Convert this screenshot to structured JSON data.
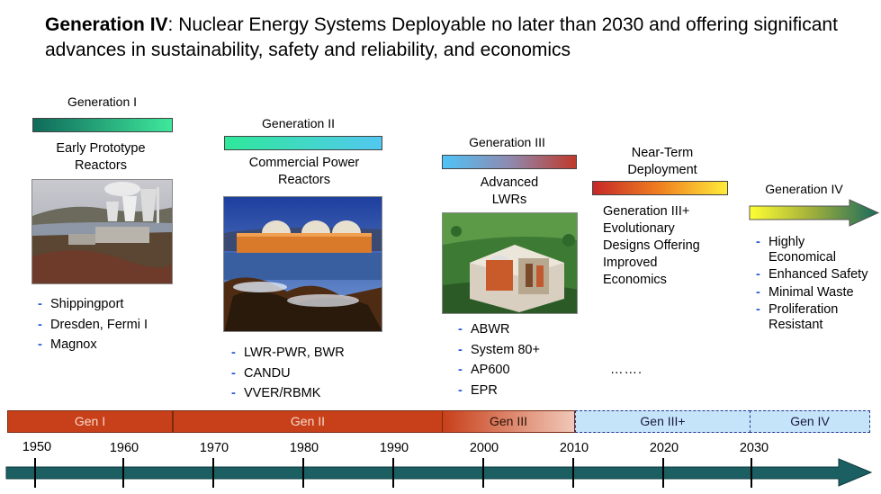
{
  "title": {
    "bold": "Generation IV",
    "rest": ":  Nuclear Energy Systems Deployable no later than 2030 and offering significant advances in sustainability, safety and reliability, and economics"
  },
  "generations": [
    {
      "label": "Generation I",
      "desc": "Early Prototype Reactors",
      "items": [
        "Shippingport",
        "Dresden, Fermi I",
        "Magnox"
      ]
    },
    {
      "label": "Generation II",
      "desc": "Commercial Power Reactors",
      "items": [
        "LWR-PWR, BWR",
        "CANDU",
        "VVER/RBMK"
      ]
    },
    {
      "label": "Generation III",
      "desc": "Advanced LWRs",
      "items": [
        "ABWR",
        "System 80+",
        "AP600",
        "EPR"
      ]
    },
    {
      "label": "Near-Term Deployment",
      "desc": "Generation III+ Evolutionary Designs Offering Improved Economics",
      "extra": "……."
    },
    {
      "label": "Generation IV",
      "items": [
        "Highly Economical",
        "Enhanced Safety",
        "Minimal Waste",
        "Proliferation Resistant"
      ]
    }
  ],
  "timeline": {
    "segments": [
      "Gen I",
      "Gen II",
      "Gen III",
      "Gen III+",
      "Gen IV"
    ],
    "years": [
      "1950",
      "1960",
      "1970",
      "1980",
      "1990",
      "2000",
      "2010",
      "2020",
      "2030"
    ]
  },
  "colors": {
    "gen1_bar": [
      "#0f6a5a",
      "#3ee89c"
    ],
    "gen2_bar": [
      "#2fe89a",
      "#52c8f0"
    ],
    "gen3_bar": [
      "#4fc3f7",
      "#c0392b"
    ],
    "gen3plus_bar": [
      "#c62828",
      "#ffeb3b"
    ],
    "gen4_arrow": [
      "#ffff33",
      "#1a6b5c"
    ],
    "timeline_solid": "#c8401a",
    "timeline_arrow": "#1c5f63"
  }
}
